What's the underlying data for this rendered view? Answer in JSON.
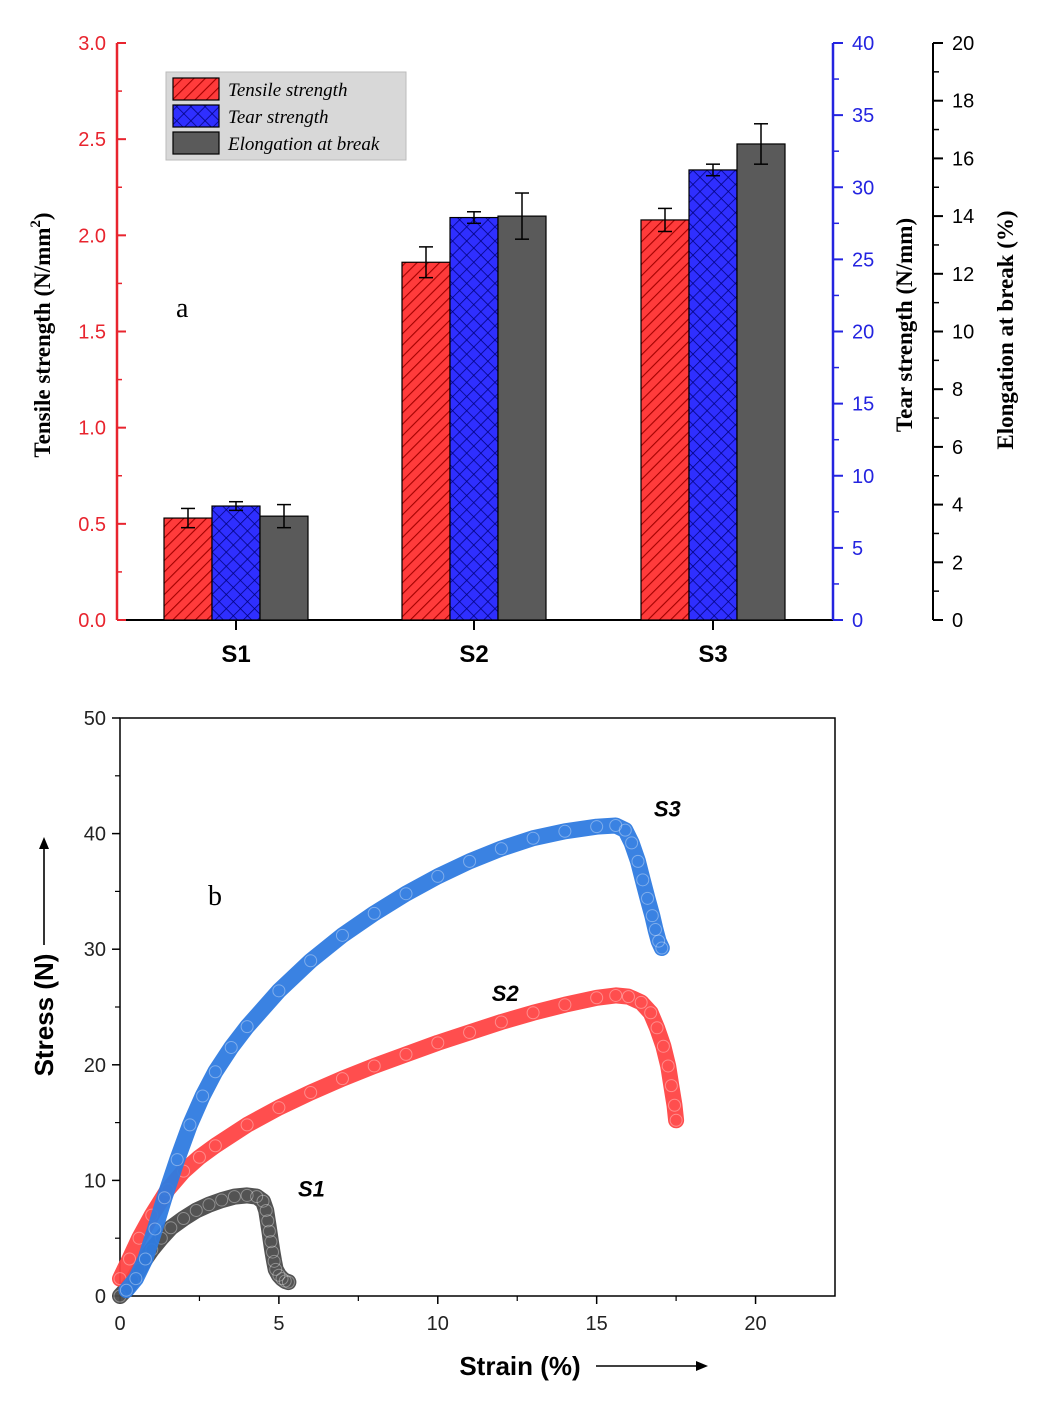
{
  "colors": {
    "tensile": "#ff3b3b",
    "tensile_dark": "#a30000",
    "tear": "#2f2fff",
    "tear_dark": "#00007a",
    "elongation": "#5a5a5a",
    "axis_red": "#e8242e",
    "axis_blue": "#2424e0",
    "black": "#000000",
    "s1_curve": "#4a4a4a",
    "s2_curve": "#ff4444",
    "s3_curve": "#2f7be0",
    "legend_bg": "#d8d8d8"
  },
  "chart_data": [
    {
      "type": "bar",
      "panel_label": "a",
      "categories": [
        "S1",
        "S2",
        "S3"
      ],
      "series": [
        {
          "name": "Tensile strength",
          "axis": "left",
          "values": [
            0.53,
            1.86,
            2.08
          ],
          "errors": [
            0.05,
            0.08,
            0.06
          ]
        },
        {
          "name": "Tear strength",
          "axis": "right1",
          "values": [
            7.9,
            27.9,
            31.2
          ],
          "errors": [
            0.3,
            0.4,
            0.4
          ]
        },
        {
          "name": "Elongation at break",
          "axis": "right2",
          "values": [
            3.6,
            14.0,
            16.5
          ],
          "errors": [
            0.4,
            0.8,
            0.7
          ]
        }
      ],
      "axes": {
        "left": {
          "label": "Tensile strength (N/mm",
          "label_sup": "2",
          "label_end": ")",
          "ylim": [
            0,
            3.0
          ],
          "ticks": [
            "0.0",
            "0.5",
            "1.0",
            "1.5",
            "2.0",
            "2.5",
            "3.0"
          ],
          "tick_values": [
            0,
            0.5,
            1.0,
            1.5,
            2.0,
            2.5,
            3.0
          ]
        },
        "right1": {
          "label": "Tear strength (N/mm)",
          "ylim": [
            0,
            40
          ],
          "ticks": [
            "0",
            "5",
            "10",
            "15",
            "20",
            "25",
            "30",
            "35",
            "40"
          ],
          "tick_values": [
            0,
            5,
            10,
            15,
            20,
            25,
            30,
            35,
            40
          ]
        },
        "right2": {
          "label": "Elongation at break (%)",
          "ylim": [
            0,
            20
          ],
          "ticks": [
            "0",
            "2",
            "4",
            "6",
            "8",
            "10",
            "12",
            "14",
            "16",
            "18",
            "20"
          ],
          "tick_values": [
            0,
            2,
            4,
            6,
            8,
            10,
            12,
            14,
            16,
            18,
            20
          ]
        }
      },
      "legend": [
        "Tensile strength",
        "Tear strength",
        "Elongation at break"
      ],
      "legend_position": "top-left"
    },
    {
      "type": "scatter",
      "panel_label": "b",
      "xlabel": "Strain (%)",
      "ylabel": "Stress (N)",
      "xlim": [
        0,
        22.5
      ],
      "ylim": [
        0,
        50
      ],
      "xticks": [
        "0",
        "5",
        "10",
        "15",
        "20"
      ],
      "xtick_values": [
        0,
        5,
        10,
        15,
        20
      ],
      "yticks": [
        "0",
        "10",
        "20",
        "30",
        "40",
        "50"
      ],
      "ytick_values": [
        0,
        10,
        20,
        30,
        40,
        50
      ],
      "series": [
        {
          "name": "S1",
          "x": [
            0.0,
            0.2,
            0.4,
            0.6,
            0.8,
            1.0,
            1.3,
            1.6,
            2.0,
            2.4,
            2.8,
            3.2,
            3.6,
            4.0,
            4.3,
            4.5,
            4.6,
            4.65,
            4.7,
            4.75,
            4.8,
            4.85,
            4.9,
            5.0,
            5.1,
            5.2,
            5.3
          ],
          "y": [
            0.0,
            0.6,
            1.4,
            2.3,
            3.2,
            4.0,
            5.0,
            5.9,
            6.7,
            7.4,
            7.9,
            8.3,
            8.6,
            8.7,
            8.6,
            8.2,
            7.4,
            6.5,
            5.6,
            4.7,
            3.8,
            3.0,
            2.3,
            1.8,
            1.5,
            1.3,
            1.2
          ],
          "label_x": 5.6,
          "label_y": 8.6
        },
        {
          "name": "S2",
          "x": [
            0.0,
            0.3,
            0.6,
            1.0,
            1.5,
            2.0,
            2.5,
            3.0,
            4.0,
            5.0,
            6.0,
            7.0,
            8.0,
            9.0,
            10.0,
            11.0,
            12.0,
            13.0,
            14.0,
            15.0,
            15.6,
            16.0,
            16.4,
            16.7,
            16.9,
            17.1,
            17.25,
            17.35,
            17.45,
            17.5
          ],
          "y": [
            1.5,
            3.2,
            5.0,
            7.0,
            9.2,
            10.8,
            12.0,
            13.0,
            14.8,
            16.3,
            17.6,
            18.8,
            19.9,
            20.9,
            21.9,
            22.8,
            23.7,
            24.5,
            25.2,
            25.8,
            26.0,
            25.9,
            25.4,
            24.5,
            23.2,
            21.6,
            19.9,
            18.2,
            16.5,
            15.2
          ],
          "label_x": 11.7,
          "label_y": 25.5
        },
        {
          "name": "S3",
          "x": [
            0.2,
            0.5,
            0.8,
            1.1,
            1.4,
            1.8,
            2.2,
            2.6,
            3.0,
            3.5,
            4.0,
            5.0,
            6.0,
            7.0,
            8.0,
            9.0,
            10.0,
            11.0,
            12.0,
            13.0,
            14.0,
            15.0,
            15.6,
            15.9,
            16.1,
            16.3,
            16.45,
            16.6,
            16.75,
            16.85,
            16.95,
            17.05
          ],
          "y": [
            0.5,
            1.5,
            3.2,
            5.8,
            8.5,
            11.8,
            14.8,
            17.3,
            19.4,
            21.5,
            23.3,
            26.4,
            29.0,
            31.2,
            33.1,
            34.8,
            36.3,
            37.6,
            38.7,
            39.6,
            40.2,
            40.6,
            40.7,
            40.3,
            39.2,
            37.6,
            36.0,
            34.4,
            32.9,
            31.7,
            30.7,
            30.1
          ],
          "label_x": 16.8,
          "label_y": 41.5
        }
      ]
    }
  ]
}
